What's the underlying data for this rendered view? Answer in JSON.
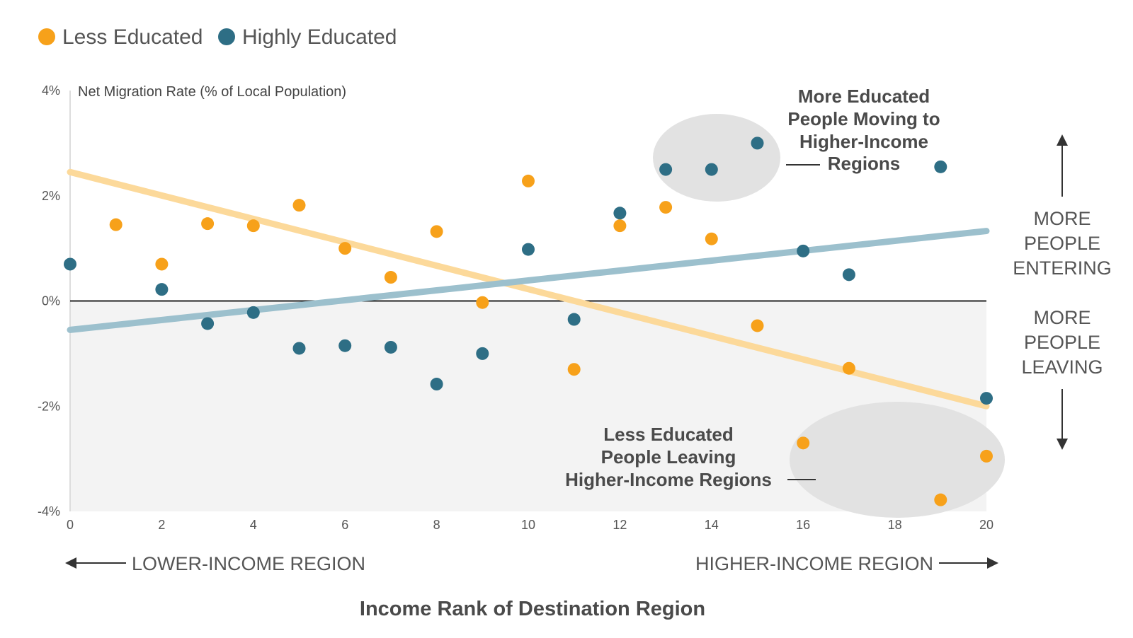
{
  "chart_data": {
    "type": "scatter",
    "legend": {
      "placement": "top-left"
    },
    "ylabel": "Net Migration Rate (% of Local Population)",
    "xlabel": "Income Rank of Destination Region",
    "xlim": [
      0,
      20
    ],
    "ylim": [
      -4,
      4
    ],
    "x_ticks": [
      0,
      2,
      4,
      6,
      8,
      10,
      12,
      14,
      16,
      18,
      20
    ],
    "y_ticks": [
      {
        "value": 4,
        "label": "4%"
      },
      {
        "value": 2,
        "label": "2%"
      },
      {
        "value": 0,
        "label": "0%"
      },
      {
        "value": -2,
        "label": "-2%"
      },
      {
        "value": -4,
        "label": "-4%"
      }
    ],
    "series": [
      {
        "name": "Less Educated",
        "color": "#f7a11a",
        "trend_color": "#fcd99a",
        "trend": {
          "x": [
            0,
            20
          ],
          "y": [
            2.45,
            -2.0
          ]
        },
        "points": [
          {
            "x": 1,
            "y": 1.45
          },
          {
            "x": 2,
            "y": 0.7
          },
          {
            "x": 3,
            "y": 1.47
          },
          {
            "x": 4,
            "y": 1.43
          },
          {
            "x": 5,
            "y": 1.82
          },
          {
            "x": 6,
            "y": 1.0
          },
          {
            "x": 7,
            "y": 0.45
          },
          {
            "x": 8,
            "y": 1.32
          },
          {
            "x": 9,
            "y": -0.03
          },
          {
            "x": 10,
            "y": 2.28
          },
          {
            "x": 11,
            "y": -1.3
          },
          {
            "x": 12,
            "y": 1.43
          },
          {
            "x": 13,
            "y": 1.78
          },
          {
            "x": 14,
            "y": 1.18
          },
          {
            "x": 15,
            "y": -0.47
          },
          {
            "x": 16,
            "y": -2.7
          },
          {
            "x": 17,
            "y": -1.28
          },
          {
            "x": 19,
            "y": -3.78
          },
          {
            "x": 20,
            "y": -2.95
          }
        ]
      },
      {
        "name": "Highly Educated",
        "color": "#2e6e85",
        "trend_color": "#9cc0cd",
        "trend": {
          "x": [
            0,
            20
          ],
          "y": [
            -0.55,
            1.33
          ]
        },
        "points": [
          {
            "x": 0,
            "y": 0.7
          },
          {
            "x": 2,
            "y": 0.22
          },
          {
            "x": 3,
            "y": -0.43
          },
          {
            "x": 4,
            "y": -0.22
          },
          {
            "x": 5,
            "y": -0.9
          },
          {
            "x": 6,
            "y": -0.85
          },
          {
            "x": 7,
            "y": -0.88
          },
          {
            "x": 8,
            "y": -1.58
          },
          {
            "x": 9,
            "y": -1.0
          },
          {
            "x": 10,
            "y": 0.98
          },
          {
            "x": 11,
            "y": -0.35
          },
          {
            "x": 12,
            "y": 1.67
          },
          {
            "x": 13,
            "y": 2.5
          },
          {
            "x": 14,
            "y": 2.5
          },
          {
            "x": 15,
            "y": 3.0
          },
          {
            "x": 16,
            "y": 0.95
          },
          {
            "x": 17,
            "y": 0.5
          },
          {
            "x": 19,
            "y": 2.55
          },
          {
            "x": 20,
            "y": -1.85
          }
        ]
      }
    ],
    "annotations": {
      "top": [
        "More Educated",
        "People Moving to",
        "Higher-Income",
        "Regions"
      ],
      "bottom": [
        "Less Educated",
        "People Leaving",
        "Higher-Income Regions"
      ]
    },
    "side_labels": {
      "up": [
        "MORE",
        "PEOPLE",
        "ENTERING"
      ],
      "down": [
        "MORE",
        "PEOPLE",
        "LEAVING"
      ]
    },
    "region_labels": {
      "left": "LOWER-INCOME REGION",
      "right": "HIGHER-INCOME REGION"
    }
  }
}
